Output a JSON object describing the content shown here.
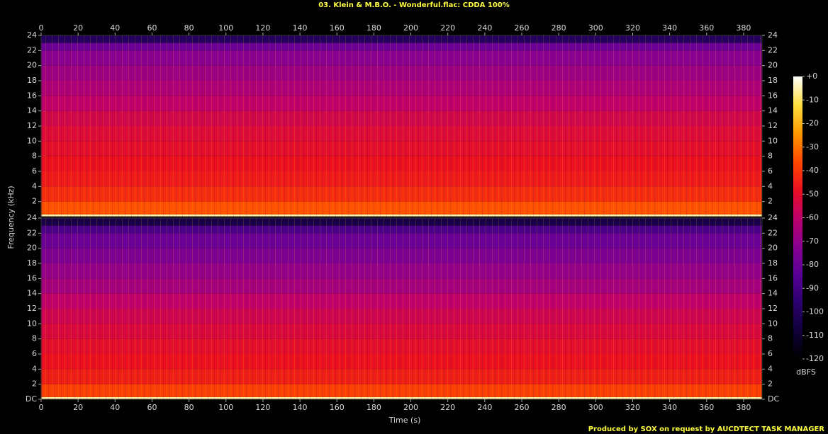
{
  "chart_data": {
    "type": "spectrogram",
    "title": "03. Klein & M.B.O. - Wonderful.flac: CDDA 100%",
    "x_label": "Time (s)",
    "y_label": "Frequency (kHz)",
    "colorbar_label": "dBFS",
    "footer": "Produced by SOX on request by AUCDTECT TASK MANAGER",
    "xlim": [
      0,
      390
    ],
    "xticks": [
      0,
      20,
      40,
      60,
      80,
      100,
      120,
      140,
      160,
      180,
      200,
      220,
      240,
      260,
      280,
      300,
      320,
      340,
      360,
      380
    ],
    "ylim": [
      0,
      24
    ],
    "yticks": [
      {
        "value": 0,
        "label": "DC"
      },
      2,
      4,
      6,
      8,
      10,
      12,
      14,
      16,
      18,
      20,
      22,
      24
    ],
    "frequency_bins": [
      0,
      0.3,
      2,
      4,
      6,
      8,
      10,
      12,
      14,
      16,
      18,
      20,
      22,
      23,
      24
    ],
    "series": [
      {
        "values": [
          -5,
          -35,
          -42,
          -46,
          -48,
          -50,
          -52,
          -55,
          -60,
          -64,
          -68,
          -72,
          -80,
          -100
        ]
      },
      {
        "values": [
          -5,
          -38,
          -45,
          -48,
          -50,
          -53,
          -56,
          -60,
          -66,
          -70,
          -75,
          -80,
          -88,
          -105
        ]
      }
    ],
    "zlim": [
      -120,
      0
    ],
    "zticks": [
      {
        "value": 0,
        "label": "+0"
      },
      -10,
      -20,
      -30,
      -40,
      -50,
      -60,
      -70,
      -80,
      -90,
      -100,
      -110,
      -120
    ],
    "colormap": [
      "#000000",
      "#10003a",
      "#2c006e",
      "#5a0098",
      "#8a0090",
      "#c0006a",
      "#ea1020",
      "#ff4a00",
      "#ff9a00",
      "#ffe040",
      "#ffffff"
    ]
  }
}
